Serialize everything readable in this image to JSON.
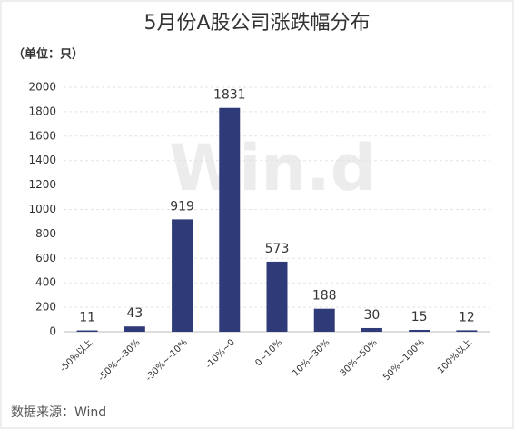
{
  "chart_data": {
    "type": "bar",
    "title": "5月份A股公司涨跌幅分布",
    "unit_label": "（单位：只）",
    "watermark": "Win.d",
    "source": "数据来源：Wind",
    "categories": [
      "-50%以上",
      "-50%~-30%",
      "-30%~-10%",
      "-10%~0",
      "0~10%",
      "10%~30%",
      "30%~50%",
      "50%~100%",
      "100%以上"
    ],
    "values": [
      11,
      43,
      919,
      1831,
      573,
      188,
      30,
      15,
      12
    ],
    "color": "#2f3b78",
    "ylim": [
      0,
      2000
    ],
    "yticks": [
      0,
      200,
      400,
      600,
      800,
      1000,
      1200,
      1400,
      1600,
      1800,
      2000
    ],
    "grid": true
  }
}
